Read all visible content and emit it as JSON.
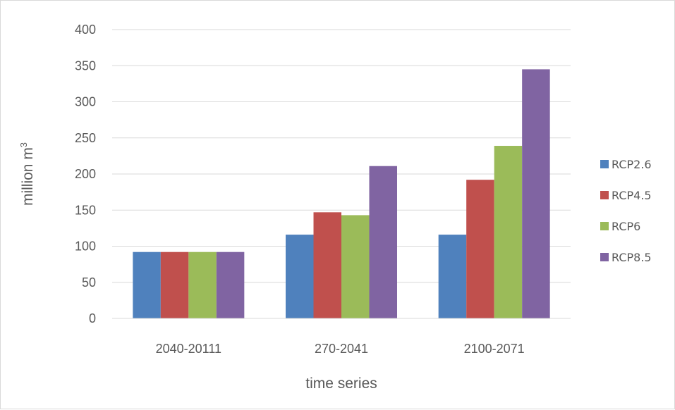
{
  "chart_data": {
    "type": "bar",
    "categories": [
      "2040-20111",
      "270-2041",
      "2100-2071"
    ],
    "series": [
      {
        "name": "RCP2.6",
        "color": "#4f81bd",
        "values": [
          92,
          116,
          116
        ]
      },
      {
        "name": "RCP4.5",
        "color": "#c0504d",
        "values": [
          92,
          147,
          192
        ]
      },
      {
        "name": "RCP6",
        "color": "#9bbb59",
        "values": [
          92,
          143,
          239
        ]
      },
      {
        "name": "RCP8.5",
        "color": "#8064a2",
        "values": [
          92,
          211,
          345
        ]
      }
    ],
    "title": "",
    "xlabel": "time series",
    "ylabel": "million m",
    "ylabel_superscript": "3",
    "ylim": [
      0,
      400
    ],
    "yticks": [
      "0",
      "50",
      "100",
      "150",
      "200",
      "250",
      "300",
      "350",
      "400"
    ],
    "grid": true,
    "legend_position": "right"
  }
}
